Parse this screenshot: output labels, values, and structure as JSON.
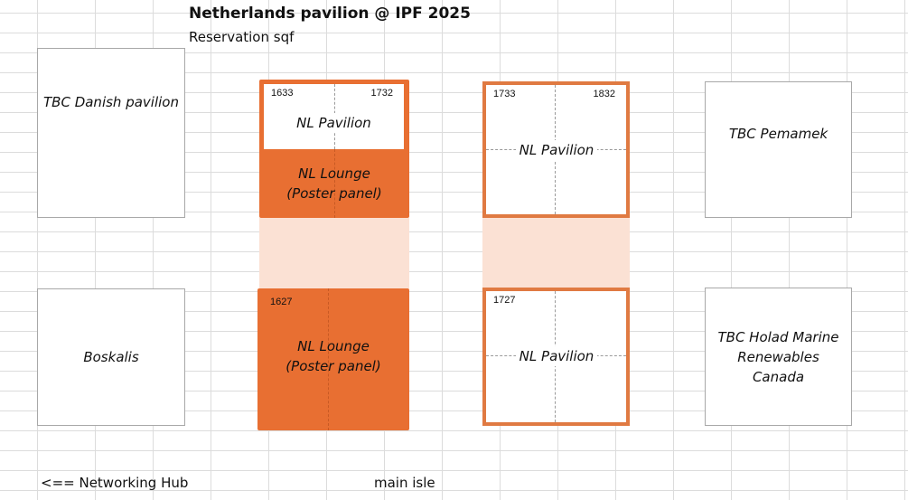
{
  "header": {
    "title": "Netherlands pavilion @ IPF 2025",
    "subtitle": "Reservation sqf"
  },
  "booths": {
    "danish": {
      "label": "TBC Danish pavilion"
    },
    "boskalis": {
      "label": "Boskalis"
    },
    "pemamek": {
      "label": "TBC Pemamek"
    },
    "holland_marine": {
      "label": "TBC Holad Marine\nRenewables\nCanada"
    },
    "nl_top_left": {
      "num_left": "1633",
      "num_right": "1732",
      "pavilion_label": "NL Pavilion",
      "lounge_label": "NL Lounge\n(Poster panel)"
    },
    "nl_top_right": {
      "num_left": "1733",
      "num_right": "1832",
      "pavilion_label": "NL Pavilion"
    },
    "nl_bottom_left": {
      "num_left": "1627",
      "lounge_label": "NL Lounge\n(Poster panel)"
    },
    "nl_bottom_right": {
      "num_left": "1727",
      "pavilion_label": "NL Pavilion"
    }
  },
  "footer": {
    "networking_hub": "<== Networking Hub",
    "main_aisle": "main isle"
  },
  "colors": {
    "orange": "#e86f32",
    "orange_border": "#e07a42",
    "aisle": "#fbe1d4",
    "grid": "#dcdcdc"
  }
}
